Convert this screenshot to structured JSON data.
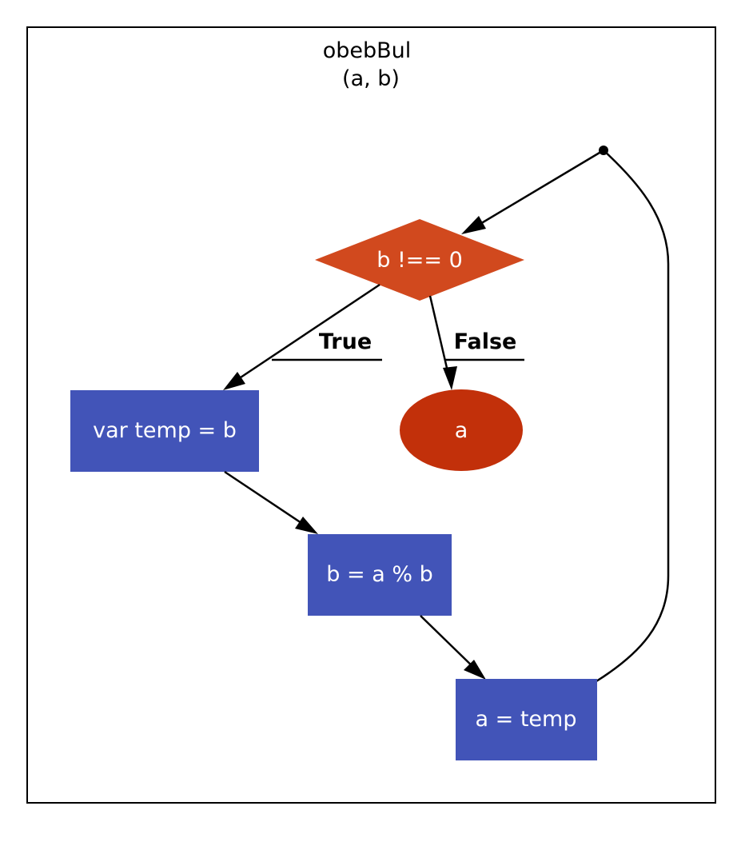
{
  "diagram": {
    "title_line1": "obebBul",
    "title_line2": "(a, b)",
    "nodes": {
      "condition": "b !== 0",
      "return_a": "a",
      "assign_temp": "var temp = b",
      "assign_b": "b = a % b",
      "assign_a": "a = temp"
    },
    "edge_labels": {
      "true_branch": "True",
      "false_branch": "False"
    },
    "colors": {
      "decision": "#d1491e",
      "terminal": "#c2300a",
      "process": "#4254b8",
      "frame": "#000000"
    }
  }
}
